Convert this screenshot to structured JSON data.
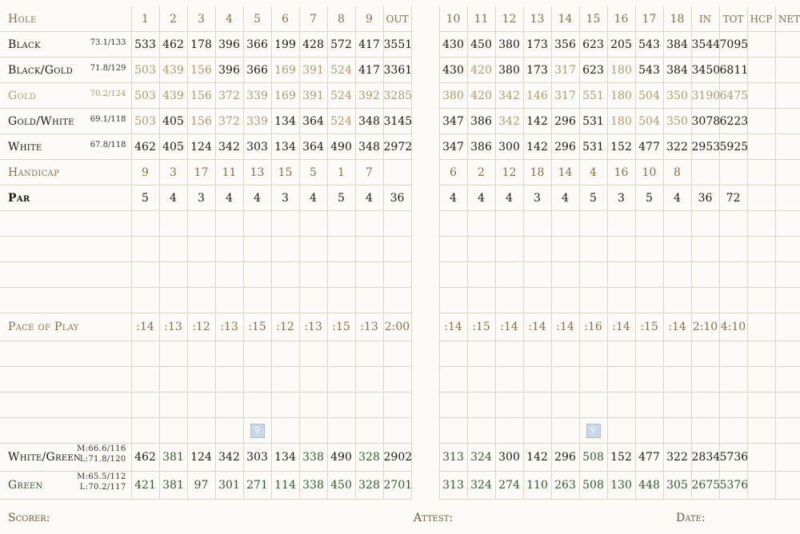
{
  "header": {
    "hole_label": "Hole",
    "holes_front": [
      "1",
      "2",
      "3",
      "4",
      "5",
      "6",
      "7",
      "8",
      "9"
    ],
    "out_label": "OUT",
    "holes_back": [
      "10",
      "11",
      "12",
      "13",
      "14",
      "15",
      "16",
      "17",
      "18"
    ],
    "in_label": "IN",
    "tot_label": "TOT",
    "hcp_label": "HCP",
    "net_label": "NET"
  },
  "tees": [
    {
      "name": "Black",
      "rating": "73.1/133",
      "front": [
        "533",
        "462",
        "178",
        "396",
        "366",
        "199",
        "428",
        "572",
        "417"
      ],
      "out": "3551",
      "back": [
        "430",
        "450",
        "380",
        "173",
        "356",
        "623",
        "205",
        "543",
        "384"
      ],
      "in": "3544",
      "tot": "7095"
    },
    {
      "name": "Black/Gold",
      "rating": "71.8/129",
      "front": [
        "503",
        "439",
        "156",
        "396",
        "366",
        "169",
        "391",
        "524",
        "417"
      ],
      "out": "3361",
      "back": [
        "430",
        "420",
        "380",
        "173",
        "317",
        "623",
        "180",
        "543",
        "384"
      ],
      "in": "3450",
      "tot": "6811"
    },
    {
      "name": "Gold",
      "rating": "70.2/124",
      "front": [
        "503",
        "439",
        "156",
        "372",
        "339",
        "169",
        "391",
        "524",
        "392"
      ],
      "out": "3285",
      "back": [
        "380",
        "420",
        "342",
        "146",
        "317",
        "551",
        "180",
        "504",
        "350"
      ],
      "in": "3190",
      "tot": "6475"
    },
    {
      "name": "Gold/White",
      "rating": "69.1/118",
      "front": [
        "503",
        "405",
        "156",
        "372",
        "339",
        "134",
        "364",
        "524",
        "348"
      ],
      "out": "3145",
      "back": [
        "347",
        "386",
        "342",
        "142",
        "296",
        "531",
        "180",
        "504",
        "350"
      ],
      "in": "3078",
      "tot": "6223"
    },
    {
      "name": "White",
      "rating": "67.8/118",
      "front": [
        "462",
        "405",
        "124",
        "342",
        "303",
        "134",
        "364",
        "490",
        "348"
      ],
      "out": "2972",
      "back": [
        "347",
        "386",
        "300",
        "142",
        "296",
        "531",
        "152",
        "477",
        "322"
      ],
      "in": "2953",
      "tot": "5925"
    }
  ],
  "handicap": {
    "label": "Handicap",
    "front": [
      "9",
      "3",
      "17",
      "11",
      "13",
      "15",
      "5",
      "1",
      "7"
    ],
    "back": [
      "6",
      "2",
      "12",
      "18",
      "14",
      "4",
      "16",
      "10",
      "8"
    ]
  },
  "par": {
    "label": "Par",
    "front": [
      "5",
      "4",
      "3",
      "4",
      "4",
      "3",
      "4",
      "5",
      "4"
    ],
    "out": "36",
    "back": [
      "4",
      "4",
      "4",
      "3",
      "4",
      "5",
      "3",
      "5",
      "4"
    ],
    "in": "36",
    "tot": "72"
  },
  "pace": {
    "label": "Pace of Play",
    "front": [
      ":14",
      ":13",
      ":12",
      ":13",
      ":15",
      ":12",
      ":13",
      ":15",
      ":13"
    ],
    "out": "2:00",
    "back": [
      ":14",
      ":15",
      ":14",
      ":14",
      ":14",
      ":16",
      ":14",
      ":15",
      ":14"
    ],
    "in": "2:10",
    "tot": "4:10"
  },
  "combo_tees": [
    {
      "name": "White/Green",
      "rating_m": "M:66.6/116",
      "rating_l": "L:71.8/120",
      "front": [
        "462",
        "381",
        "124",
        "342",
        "303",
        "134",
        "338",
        "490",
        "328"
      ],
      "out": "2902",
      "back": [
        "313",
        "324",
        "300",
        "142",
        "296",
        "508",
        "152",
        "477",
        "322"
      ],
      "in": "2834",
      "tot": "5736"
    },
    {
      "name": "Green",
      "rating_m": "M:65.5/112",
      "rating_l": "L:70.2/117",
      "front": [
        "421",
        "381",
        "97",
        "301",
        "271",
        "114",
        "338",
        "450",
        "328"
      ],
      "out": "2701",
      "back": [
        "313",
        "324",
        "274",
        "110",
        "263",
        "508",
        "130",
        "448",
        "305"
      ],
      "in": "2675",
      "tot": "5376"
    }
  ],
  "footer": {
    "scorer": "Scorer:",
    "attest": "Attest:",
    "date": "Date:"
  },
  "colors": {
    "brown": "#8a6f4a",
    "tan": "#b19a6f",
    "green": "#2f5a33",
    "black": "#1f1a14",
    "line": "#d9d5cb"
  },
  "icons": {
    "restroom_5": "restroom-icon",
    "restroom_15": "restroom-icon"
  }
}
